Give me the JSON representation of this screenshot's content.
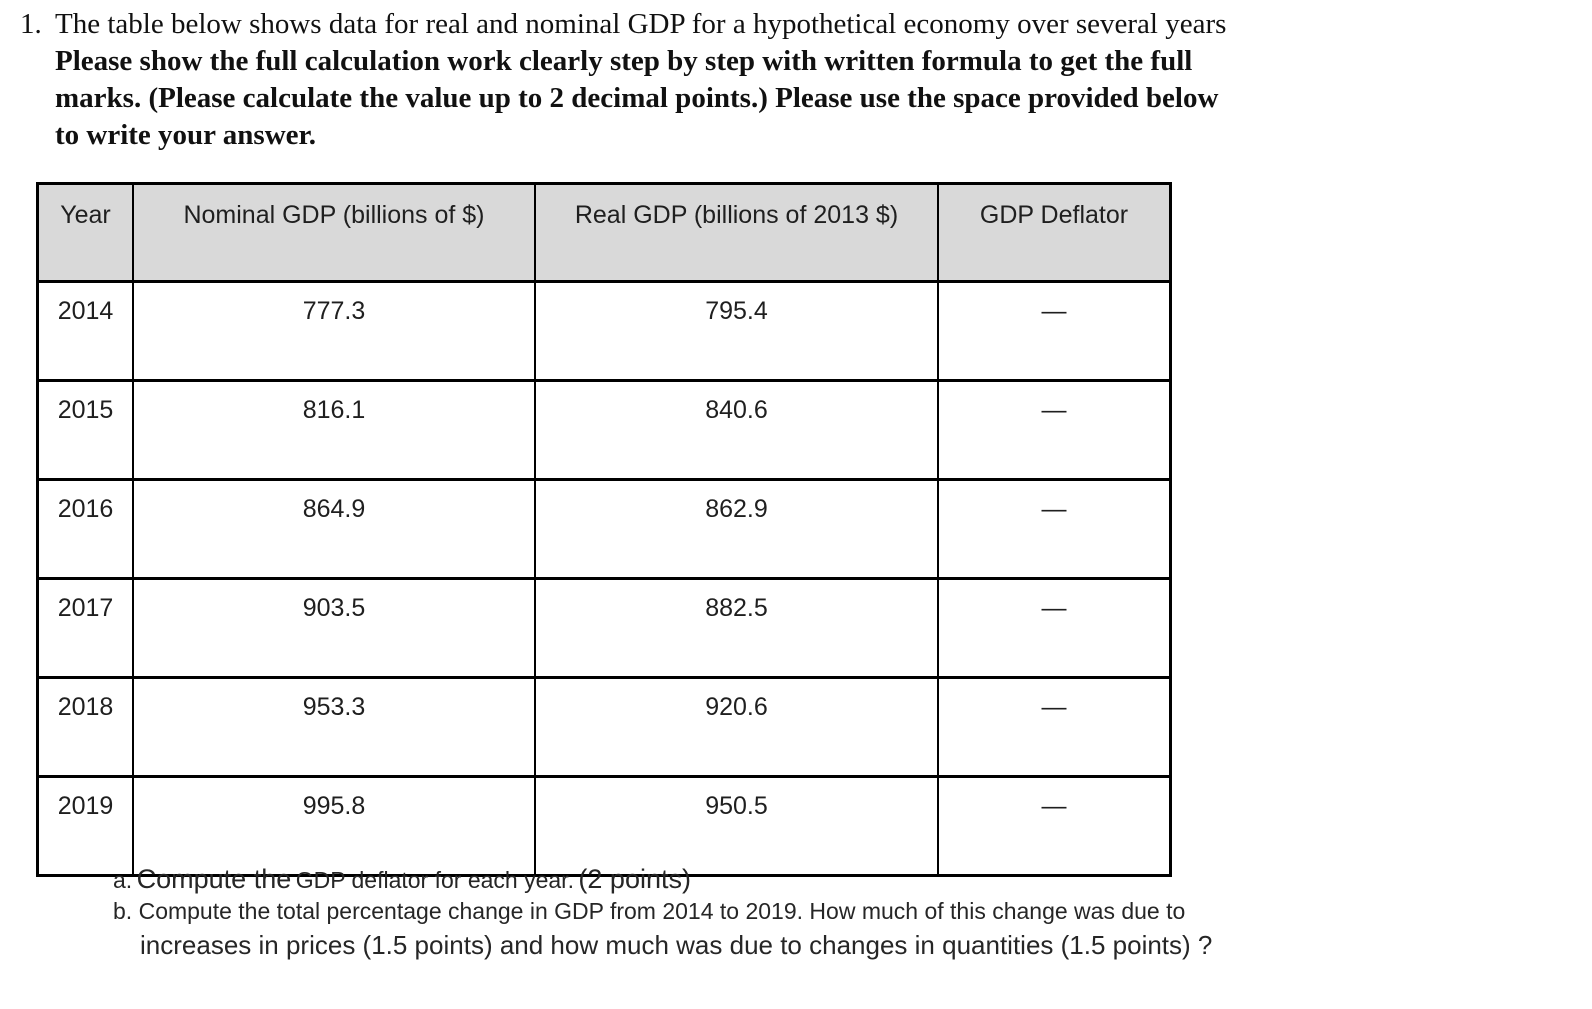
{
  "question": {
    "number": "1.",
    "line1": "The table below shows data for real and nominal GDP for a hypothetical economy over several years",
    "line2": "Please show the full calculation work clearly step by step with written formula to get the full",
    "line3": "marks. (Please calculate the value up to 2 decimal points.) Please use the space provided below",
    "line4": "to write your answer."
  },
  "table": {
    "headers": [
      "Year",
      "Nominal GDP (billions of $)",
      "Real GDP (billions of 2013 $)",
      "GDP Deflator"
    ],
    "rows": [
      {
        "year": "2014",
        "nominal": "777.3",
        "real": "795.4",
        "deflator": "—"
      },
      {
        "year": "2015",
        "nominal": "816.1",
        "real": "840.6",
        "deflator": "—"
      },
      {
        "year": "2016",
        "nominal": "864.9",
        "real": "862.9",
        "deflator": "—"
      },
      {
        "year": "2017",
        "nominal": "903.5",
        "real": "882.5",
        "deflator": "—"
      },
      {
        "year": "2018",
        "nominal": "953.3",
        "real": "920.6",
        "deflator": "—"
      },
      {
        "year": "2019",
        "nominal": "995.8",
        "real": "950.5",
        "deflator": "—"
      }
    ]
  },
  "subquestions": {
    "a": {
      "label": "a.",
      "seg1": "Compute the",
      "seg2": "GDP deflator for each year.",
      "seg3": "(2 points)"
    },
    "b": {
      "label": "b.",
      "line1": "Compute the total percentage change in GDP from 2014 to 2019. How much of this change was due to",
      "line2": "increases in prices (1.5 points) and how much was due to changes in quantities (1.5 points) ?"
    }
  },
  "colors": {
    "header_bg": "#d9d9d9",
    "border": "#000000",
    "text": "#1f1f1f"
  }
}
